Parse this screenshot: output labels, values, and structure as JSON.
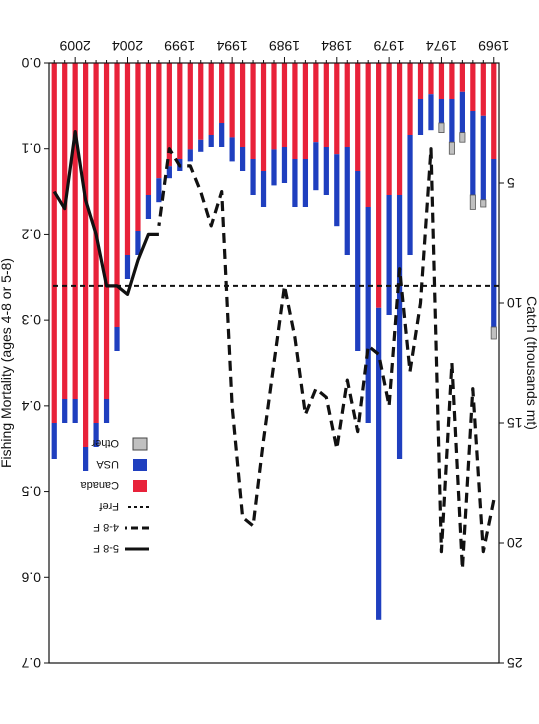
{
  "chart_data": {
    "type": "bar",
    "orientation": "rotated-180",
    "title": "",
    "ylabel_left": "Catch (thousands mt)",
    "ylabel_right": "Fishing Mortality (ages 4-8 or 5-8)",
    "xlabel": "",
    "years": [
      1969,
      1970,
      1971,
      1972,
      1973,
      1974,
      1975,
      1976,
      1977,
      1978,
      1979,
      1980,
      1981,
      1982,
      1983,
      1984,
      1985,
      1986,
      1987,
      1988,
      1989,
      1990,
      1991,
      1992,
      1993,
      1994,
      1995,
      1996,
      1997,
      1998,
      1999,
      2000,
      2001,
      2002,
      2003,
      2004,
      2005,
      2006,
      2007,
      2008,
      2009,
      2010,
      2011
    ],
    "x_tick_labels": [
      "1969",
      "1974",
      "1979",
      "1984",
      "1989",
      "1994",
      "1999",
      "2004",
      "2009"
    ],
    "catch_ticks": [
      "25",
      "20",
      "15",
      "10",
      "5"
    ],
    "catch_range": [
      0,
      25
    ],
    "mortality_ticks": [
      "0.7",
      "0.6",
      "0.5",
      "0.4",
      "0.3",
      "0.2",
      "0.1",
      "0.0"
    ],
    "mortality_range": [
      0,
      0.7
    ],
    "series": [
      {
        "name": "Canada",
        "color": "#e8223a",
        "values": [
          4.0,
          2.2,
          2.0,
          1.2,
          1.5,
          1.5,
          1.3,
          1.5,
          3.0,
          5.5,
          5.5,
          10.2,
          6.0,
          4.5,
          3.5,
          3.8,
          3.5,
          3.3,
          4.0,
          4.0,
          3.5,
          3.6,
          4.5,
          4.0,
          3.5,
          3.1,
          2.5,
          3.0,
          3.2,
          3.6,
          4.0,
          4.3,
          4.8,
          5.5,
          7.0,
          8.0,
          11.0,
          14.0,
          15.0,
          16.0,
          14.0,
          14.0,
          15.0
        ]
      },
      {
        "name": "USA",
        "color": "#1f3fbf",
        "values": [
          7.0,
          3.5,
          3.5,
          1.7,
          1.8,
          1.0,
          1.5,
          1.5,
          5.0,
          11.0,
          5.0,
          13.0,
          9.0,
          7.5,
          4.5,
          3.0,
          2.0,
          2.0,
          2.0,
          2.0,
          1.5,
          1.5,
          1.5,
          1.5,
          1.0,
          1.0,
          1.0,
          0.5,
          0.5,
          0.5,
          0.5,
          0.5,
          1.0,
          1.0,
          1.0,
          1.0,
          1.0,
          1.0,
          1.0,
          1.0,
          1.0,
          1.0,
          1.5
        ]
      },
      {
        "name": "Other",
        "color": "#c0c0c0",
        "values": [
          0.5,
          0.3,
          0.6,
          0.4,
          0.5,
          0.4,
          0,
          0,
          0,
          0,
          0,
          0,
          0,
          0,
          0,
          0,
          0,
          0,
          0,
          0,
          0,
          0,
          0,
          0,
          0,
          0,
          0,
          0,
          0,
          0,
          0,
          0,
          0,
          0,
          0,
          0,
          0,
          0,
          0,
          0,
          0,
          0,
          0
        ]
      }
    ],
    "lines": [
      {
        "name": "Fref",
        "style": "short-dash",
        "axis": "mortality",
        "value": 0.26
      },
      {
        "name": "4-8 F",
        "style": "dash",
        "axis": "mortality",
        "x": [
          1969,
          1970,
          1971,
          1972,
          1973,
          1974,
          1975,
          1976,
          1977,
          1978,
          1979,
          1980,
          1981,
          1982,
          1983,
          1984,
          1985,
          1986,
          1987,
          1988,
          1989,
          1990,
          1991,
          1992,
          1993,
          1994,
          1995,
          1996,
          1997,
          1998,
          1999,
          2000,
          2001
        ],
        "values": [
          0.51,
          0.57,
          0.38,
          0.59,
          0.35,
          0.57,
          0.1,
          0.28,
          0.36,
          0.24,
          0.4,
          0.34,
          0.33,
          0.43,
          0.37,
          0.45,
          0.39,
          0.38,
          0.41,
          0.32,
          0.26,
          0.35,
          0.44,
          0.54,
          0.53,
          0.4,
          0.15,
          0.19,
          0.15,
          0.12,
          0.12,
          0.1,
          0.19
        ]
      },
      {
        "name": "5-8 F",
        "style": "solid",
        "axis": "mortality",
        "x": [
          2001,
          2002,
          2003,
          2004,
          2005,
          2006,
          2007,
          2008,
          2009,
          2010,
          2011
        ],
        "values": [
          0.2,
          0.2,
          0.23,
          0.27,
          0.26,
          0.26,
          0.2,
          0.16,
          0.08,
          0.17,
          0.15
        ]
      }
    ],
    "legend": {
      "position": "top-right",
      "items": [
        {
          "label": "Other",
          "symbol": "box",
          "color": "#c0c0c0"
        },
        {
          "label": "USA",
          "symbol": "box",
          "color": "#1f3fbf"
        },
        {
          "label": "Canada",
          "symbol": "box",
          "color": "#e8223a"
        },
        {
          "label": "Fref",
          "symbol": "short-dash"
        },
        {
          "label": "4-8 F",
          "symbol": "dash"
        },
        {
          "label": "5-8 F",
          "symbol": "solid"
        }
      ]
    },
    "grid": false
  }
}
